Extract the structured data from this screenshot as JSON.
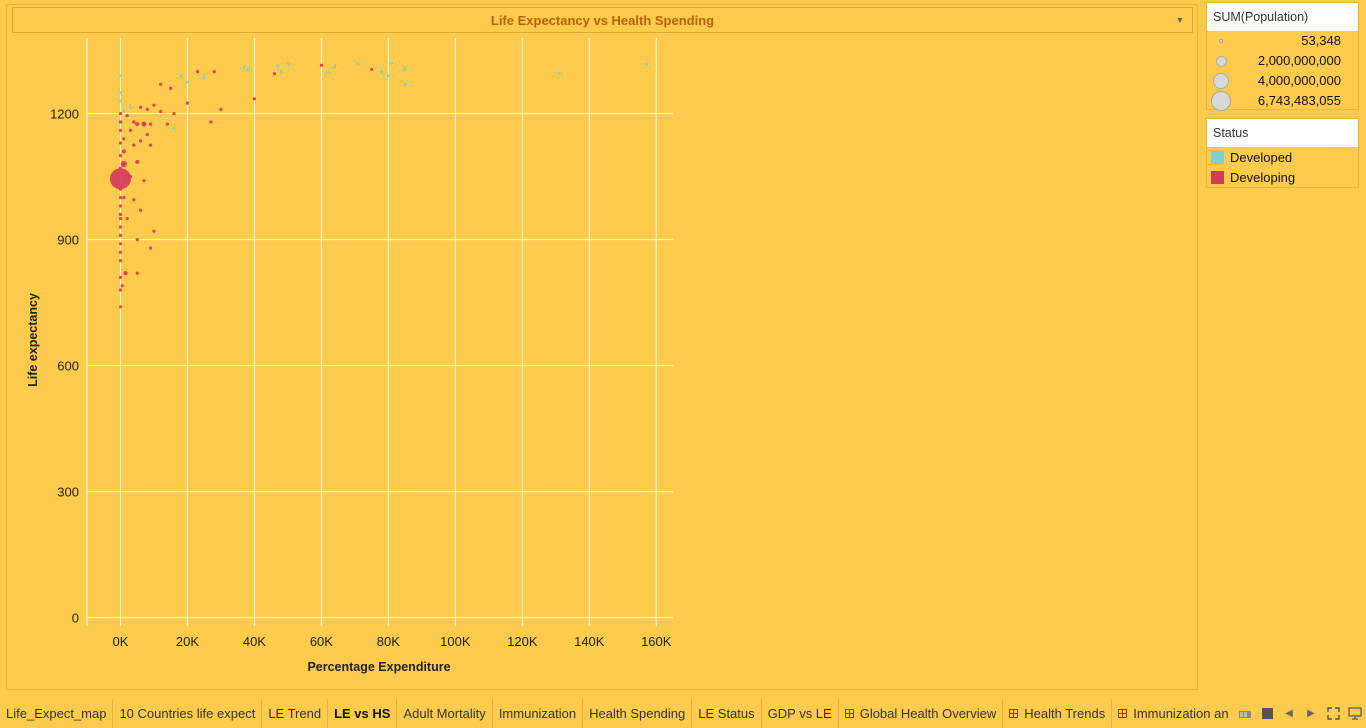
{
  "dashboard": {
    "title": "Life Expectancy vs Health Spending",
    "title_menu_icon": "chevron-down-icon"
  },
  "chart_data": {
    "type": "scatter",
    "title": "Life Expectancy vs Health Spending",
    "xlabel": "Percentage Expenditure",
    "ylabel": "Life expectancy",
    "xlim": [
      -10000,
      165000
    ],
    "ylim": [
      -20,
      1380
    ],
    "x_ticks": [
      0,
      20000,
      40000,
      60000,
      80000,
      100000,
      120000,
      140000,
      160000
    ],
    "x_tick_labels": [
      "0K",
      "20K",
      "40K",
      "60K",
      "80K",
      "100K",
      "120K",
      "140K",
      "160K"
    ],
    "y_ticks": [
      0,
      300,
      600,
      900,
      1200
    ],
    "y_tick_labels": [
      "0",
      "300",
      "600",
      "900",
      "1200"
    ],
    "grid": true,
    "legend_position": "right",
    "size_by": "SUM(Population)",
    "color_by": "Status",
    "series": [
      {
        "name": "Developed",
        "color": "#7FD0D0",
        "points": [
          {
            "x": 0,
            "y": 1290,
            "pop": 20000000
          },
          {
            "x": 0,
            "y": 1250,
            "pop": 15000000
          },
          {
            "x": 0,
            "y": 1230,
            "pop": 20000000
          },
          {
            "x": 1000,
            "y": 1205,
            "pop": 25000000
          },
          {
            "x": 2000,
            "y": 1195,
            "pop": 40000000
          },
          {
            "x": 500,
            "y": 1180,
            "pop": 20000000
          },
          {
            "x": 16000,
            "y": 1165,
            "pop": 20000000
          },
          {
            "x": 18000,
            "y": 1290,
            "pop": 25000000
          },
          {
            "x": 20000,
            "y": 1275,
            "pop": 30000000
          },
          {
            "x": 25000,
            "y": 1285,
            "pop": 20000000
          },
          {
            "x": 37000,
            "y": 1310,
            "pop": 60000000
          },
          {
            "x": 38000,
            "y": 1305,
            "pop": 80000000
          },
          {
            "x": 47000,
            "y": 1313,
            "pop": 70000000
          },
          {
            "x": 48000,
            "y": 1300,
            "pop": 40000000
          },
          {
            "x": 50000,
            "y": 1318,
            "pop": 20000000
          },
          {
            "x": 62000,
            "y": 1298,
            "pop": 120000000
          },
          {
            "x": 64000,
            "y": 1310,
            "pop": 30000000
          },
          {
            "x": 71000,
            "y": 1320,
            "pop": 30000000
          },
          {
            "x": 78000,
            "y": 1300,
            "pop": 25000000
          },
          {
            "x": 80000,
            "y": 1290,
            "pop": 25000000
          },
          {
            "x": 81000,
            "y": 1320,
            "pop": 25000000
          },
          {
            "x": 85000,
            "y": 1305,
            "pop": 25000000
          },
          {
            "x": 85000,
            "y": 1270,
            "pop": 25000000
          },
          {
            "x": 131000,
            "y": 1295,
            "pop": 20000000
          },
          {
            "x": 157000,
            "y": 1318,
            "pop": 20000000
          },
          {
            "x": 3000,
            "y": 1215,
            "pop": 20000000
          }
        ]
      },
      {
        "name": "Developing",
        "color": "#D63A5B",
        "points": [
          {
            "x": 0,
            "y": 1045,
            "pop": 6743483055
          },
          {
            "x": 1000,
            "y": 1080,
            "pop": 600000000
          },
          {
            "x": 1000,
            "y": 1110,
            "pop": 250000000
          },
          {
            "x": 1000,
            "y": 1140,
            "pop": 120000000
          },
          {
            "x": 1500,
            "y": 820,
            "pop": 300000000
          },
          {
            "x": 0,
            "y": 950,
            "pop": 150000000
          },
          {
            "x": 5000,
            "y": 1085,
            "pop": 250000000
          },
          {
            "x": 7000,
            "y": 1175,
            "pop": 400000000
          },
          {
            "x": 5000,
            "y": 1175,
            "pop": 250000000
          },
          {
            "x": 4000,
            "y": 1180,
            "pop": 200000000
          },
          {
            "x": 8000,
            "y": 1210,
            "pop": 150000000
          },
          {
            "x": 6000,
            "y": 1215,
            "pop": 150000000
          },
          {
            "x": 12000,
            "y": 1205,
            "pop": 150000000
          },
          {
            "x": 9000,
            "y": 1175,
            "pop": 120000000
          },
          {
            "x": 60000,
            "y": 1315,
            "pop": 120000000
          },
          {
            "x": 0,
            "y": 1200,
            "pop": 60000000
          },
          {
            "x": 0,
            "y": 1180,
            "pop": 40000000
          },
          {
            "x": 0,
            "y": 1160,
            "pop": 40000000
          },
          {
            "x": 0,
            "y": 1130,
            "pop": 40000000
          },
          {
            "x": 0,
            "y": 1100,
            "pop": 40000000
          },
          {
            "x": 0,
            "y": 1070,
            "pop": 40000000
          },
          {
            "x": 0,
            "y": 1020,
            "pop": 50000000
          },
          {
            "x": 0,
            "y": 1000,
            "pop": 40000000
          },
          {
            "x": 0,
            "y": 980,
            "pop": 60000000
          },
          {
            "x": 0,
            "y": 960,
            "pop": 40000000
          },
          {
            "x": 0,
            "y": 930,
            "pop": 50000000
          },
          {
            "x": 0,
            "y": 910,
            "pop": 40000000
          },
          {
            "x": 0,
            "y": 890,
            "pop": 50000000
          },
          {
            "x": 0,
            "y": 870,
            "pop": 40000000
          },
          {
            "x": 0,
            "y": 850,
            "pop": 40000000
          },
          {
            "x": 0,
            "y": 810,
            "pop": 40000000
          },
          {
            "x": 500,
            "y": 790,
            "pop": 40000000
          },
          {
            "x": 0,
            "y": 780,
            "pop": 30000000
          },
          {
            "x": 0,
            "y": 740,
            "pop": 30000000
          },
          {
            "x": 2000,
            "y": 1195,
            "pop": 50000000
          },
          {
            "x": 3000,
            "y": 1160,
            "pop": 60000000
          },
          {
            "x": 4000,
            "y": 1125,
            "pop": 40000000
          },
          {
            "x": 6000,
            "y": 1135,
            "pop": 50000000
          },
          {
            "x": 8000,
            "y": 1150,
            "pop": 40000000
          },
          {
            "x": 9000,
            "y": 1125,
            "pop": 40000000
          },
          {
            "x": 10000,
            "y": 1220,
            "pop": 40000000
          },
          {
            "x": 12000,
            "y": 1270,
            "pop": 30000000
          },
          {
            "x": 15000,
            "y": 1260,
            "pop": 30000000
          },
          {
            "x": 14000,
            "y": 1175,
            "pop": 30000000
          },
          {
            "x": 16000,
            "y": 1200,
            "pop": 30000000
          },
          {
            "x": 20000,
            "y": 1225,
            "pop": 30000000
          },
          {
            "x": 23000,
            "y": 1300,
            "pop": 30000000
          },
          {
            "x": 27000,
            "y": 1180,
            "pop": 30000000
          },
          {
            "x": 28000,
            "y": 1300,
            "pop": 30000000
          },
          {
            "x": 30000,
            "y": 1210,
            "pop": 30000000
          },
          {
            "x": 40000,
            "y": 1235,
            "pop": 30000000
          },
          {
            "x": 46000,
            "y": 1295,
            "pop": 30000000
          },
          {
            "x": 75000,
            "y": 1305,
            "pop": 30000000
          },
          {
            "x": 5000,
            "y": 820,
            "pop": 40000000
          },
          {
            "x": 5000,
            "y": 900,
            "pop": 40000000
          },
          {
            "x": 6000,
            "y": 970,
            "pop": 30000000
          },
          {
            "x": 4000,
            "y": 995,
            "pop": 30000000
          },
          {
            "x": 7000,
            "y": 1040,
            "pop": 40000000
          },
          {
            "x": 9000,
            "y": 880,
            "pop": 30000000
          },
          {
            "x": 10000,
            "y": 920,
            "pop": 30000000
          },
          {
            "x": 2000,
            "y": 950,
            "pop": 40000000
          },
          {
            "x": 1000,
            "y": 1000,
            "pop": 40000000
          },
          {
            "x": 3000,
            "y": 1050,
            "pop": 40000000
          }
        ]
      }
    ]
  },
  "legend_size": {
    "title": "SUM(Population)",
    "items": [
      {
        "label": "53,348",
        "value": 53348
      },
      {
        "label": "2,000,000,000",
        "value": 2000000000
      },
      {
        "label": "4,000,000,000",
        "value": 4000000000
      },
      {
        "label": "6,743,483,055",
        "value": 6743483055
      }
    ]
  },
  "legend_color": {
    "title": "Status",
    "items": [
      {
        "label": "Developed",
        "color": "#7FD0D0"
      },
      {
        "label": "Developing",
        "color": "#D63A5B"
      }
    ]
  },
  "tabs": [
    {
      "label": "Life_Expect_map",
      "type": "sheet",
      "active": false
    },
    {
      "label": "10 Countries life expect",
      "type": "sheet",
      "active": false
    },
    {
      "label": "LE Trend",
      "type": "sheet",
      "active": false
    },
    {
      "label": "LE vs HS",
      "type": "sheet",
      "active": true
    },
    {
      "label": "Adult Mortality",
      "type": "sheet",
      "active": false
    },
    {
      "label": "Immunization",
      "type": "sheet",
      "active": false
    },
    {
      "label": "Health Spending",
      "type": "sheet",
      "active": false
    },
    {
      "label": "LE Status",
      "type": "sheet",
      "active": false
    },
    {
      "label": "GDP vs LE",
      "type": "sheet",
      "active": false
    },
    {
      "label": "Global Health Overview",
      "type": "dashboard",
      "active": false
    },
    {
      "label": "Health Trends",
      "type": "dashboard",
      "active": false
    },
    {
      "label": "Immunization an",
      "type": "dashboard",
      "active": false
    }
  ],
  "tab_controls": [
    "filmstrip-view-icon",
    "sheet-sorter-icon",
    "scroll-left-icon",
    "scroll-right-icon",
    "fullscreen-icon",
    "presentation-mode-icon"
  ]
}
